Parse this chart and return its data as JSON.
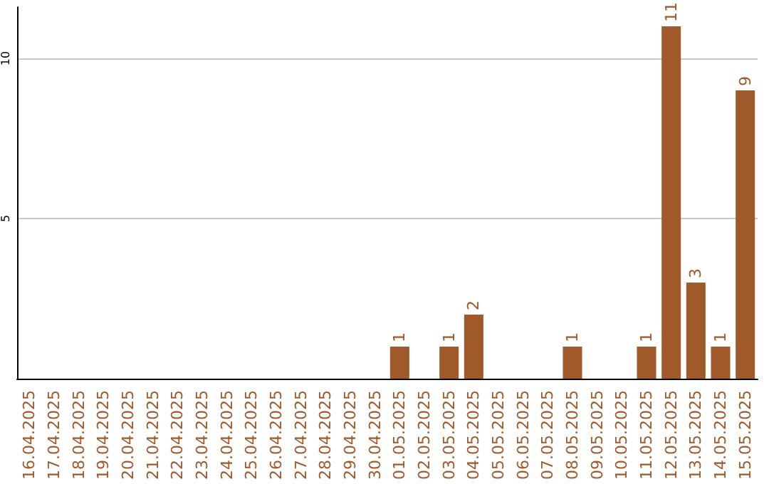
{
  "chart_data": {
    "type": "bar",
    "categories": [
      "16.04.2025",
      "17.04.2025",
      "18.04.2025",
      "19.04.2025",
      "20.04.2025",
      "21.04.2025",
      "22.04.2025",
      "23.04.2025",
      "24.04.2025",
      "25.04.2025",
      "26.04.2025",
      "27.04.2025",
      "28.04.2025",
      "29.04.2025",
      "30.04.2025",
      "01.05.2025",
      "02.05.2025",
      "03.05.2025",
      "04.05.2025",
      "05.05.2025",
      "06.05.2025",
      "07.05.2025",
      "08.05.2025",
      "09.05.2025",
      "10.05.2025",
      "11.05.2025",
      "12.05.2025",
      "13.05.2025",
      "14.05.2025",
      "15.05.2025"
    ],
    "values": [
      0,
      0,
      0,
      0,
      0,
      0,
      0,
      0,
      0,
      0,
      0,
      0,
      0,
      0,
      0,
      1,
      0,
      1,
      2,
      0,
      0,
      0,
      1,
      0,
      0,
      1,
      11,
      3,
      1,
      9
    ],
    "value_labels": [
      null,
      null,
      null,
      null,
      null,
      null,
      null,
      null,
      null,
      null,
      null,
      null,
      null,
      null,
      null,
      "1",
      null,
      "1",
      "2",
      null,
      null,
      null,
      "1",
      null,
      null,
      "1",
      "11",
      "3",
      "1",
      "9"
    ],
    "color": "#a0592b",
    "ylim": [
      0,
      11.6
    ],
    "yticks": [
      5,
      10
    ],
    "grid": "y"
  }
}
